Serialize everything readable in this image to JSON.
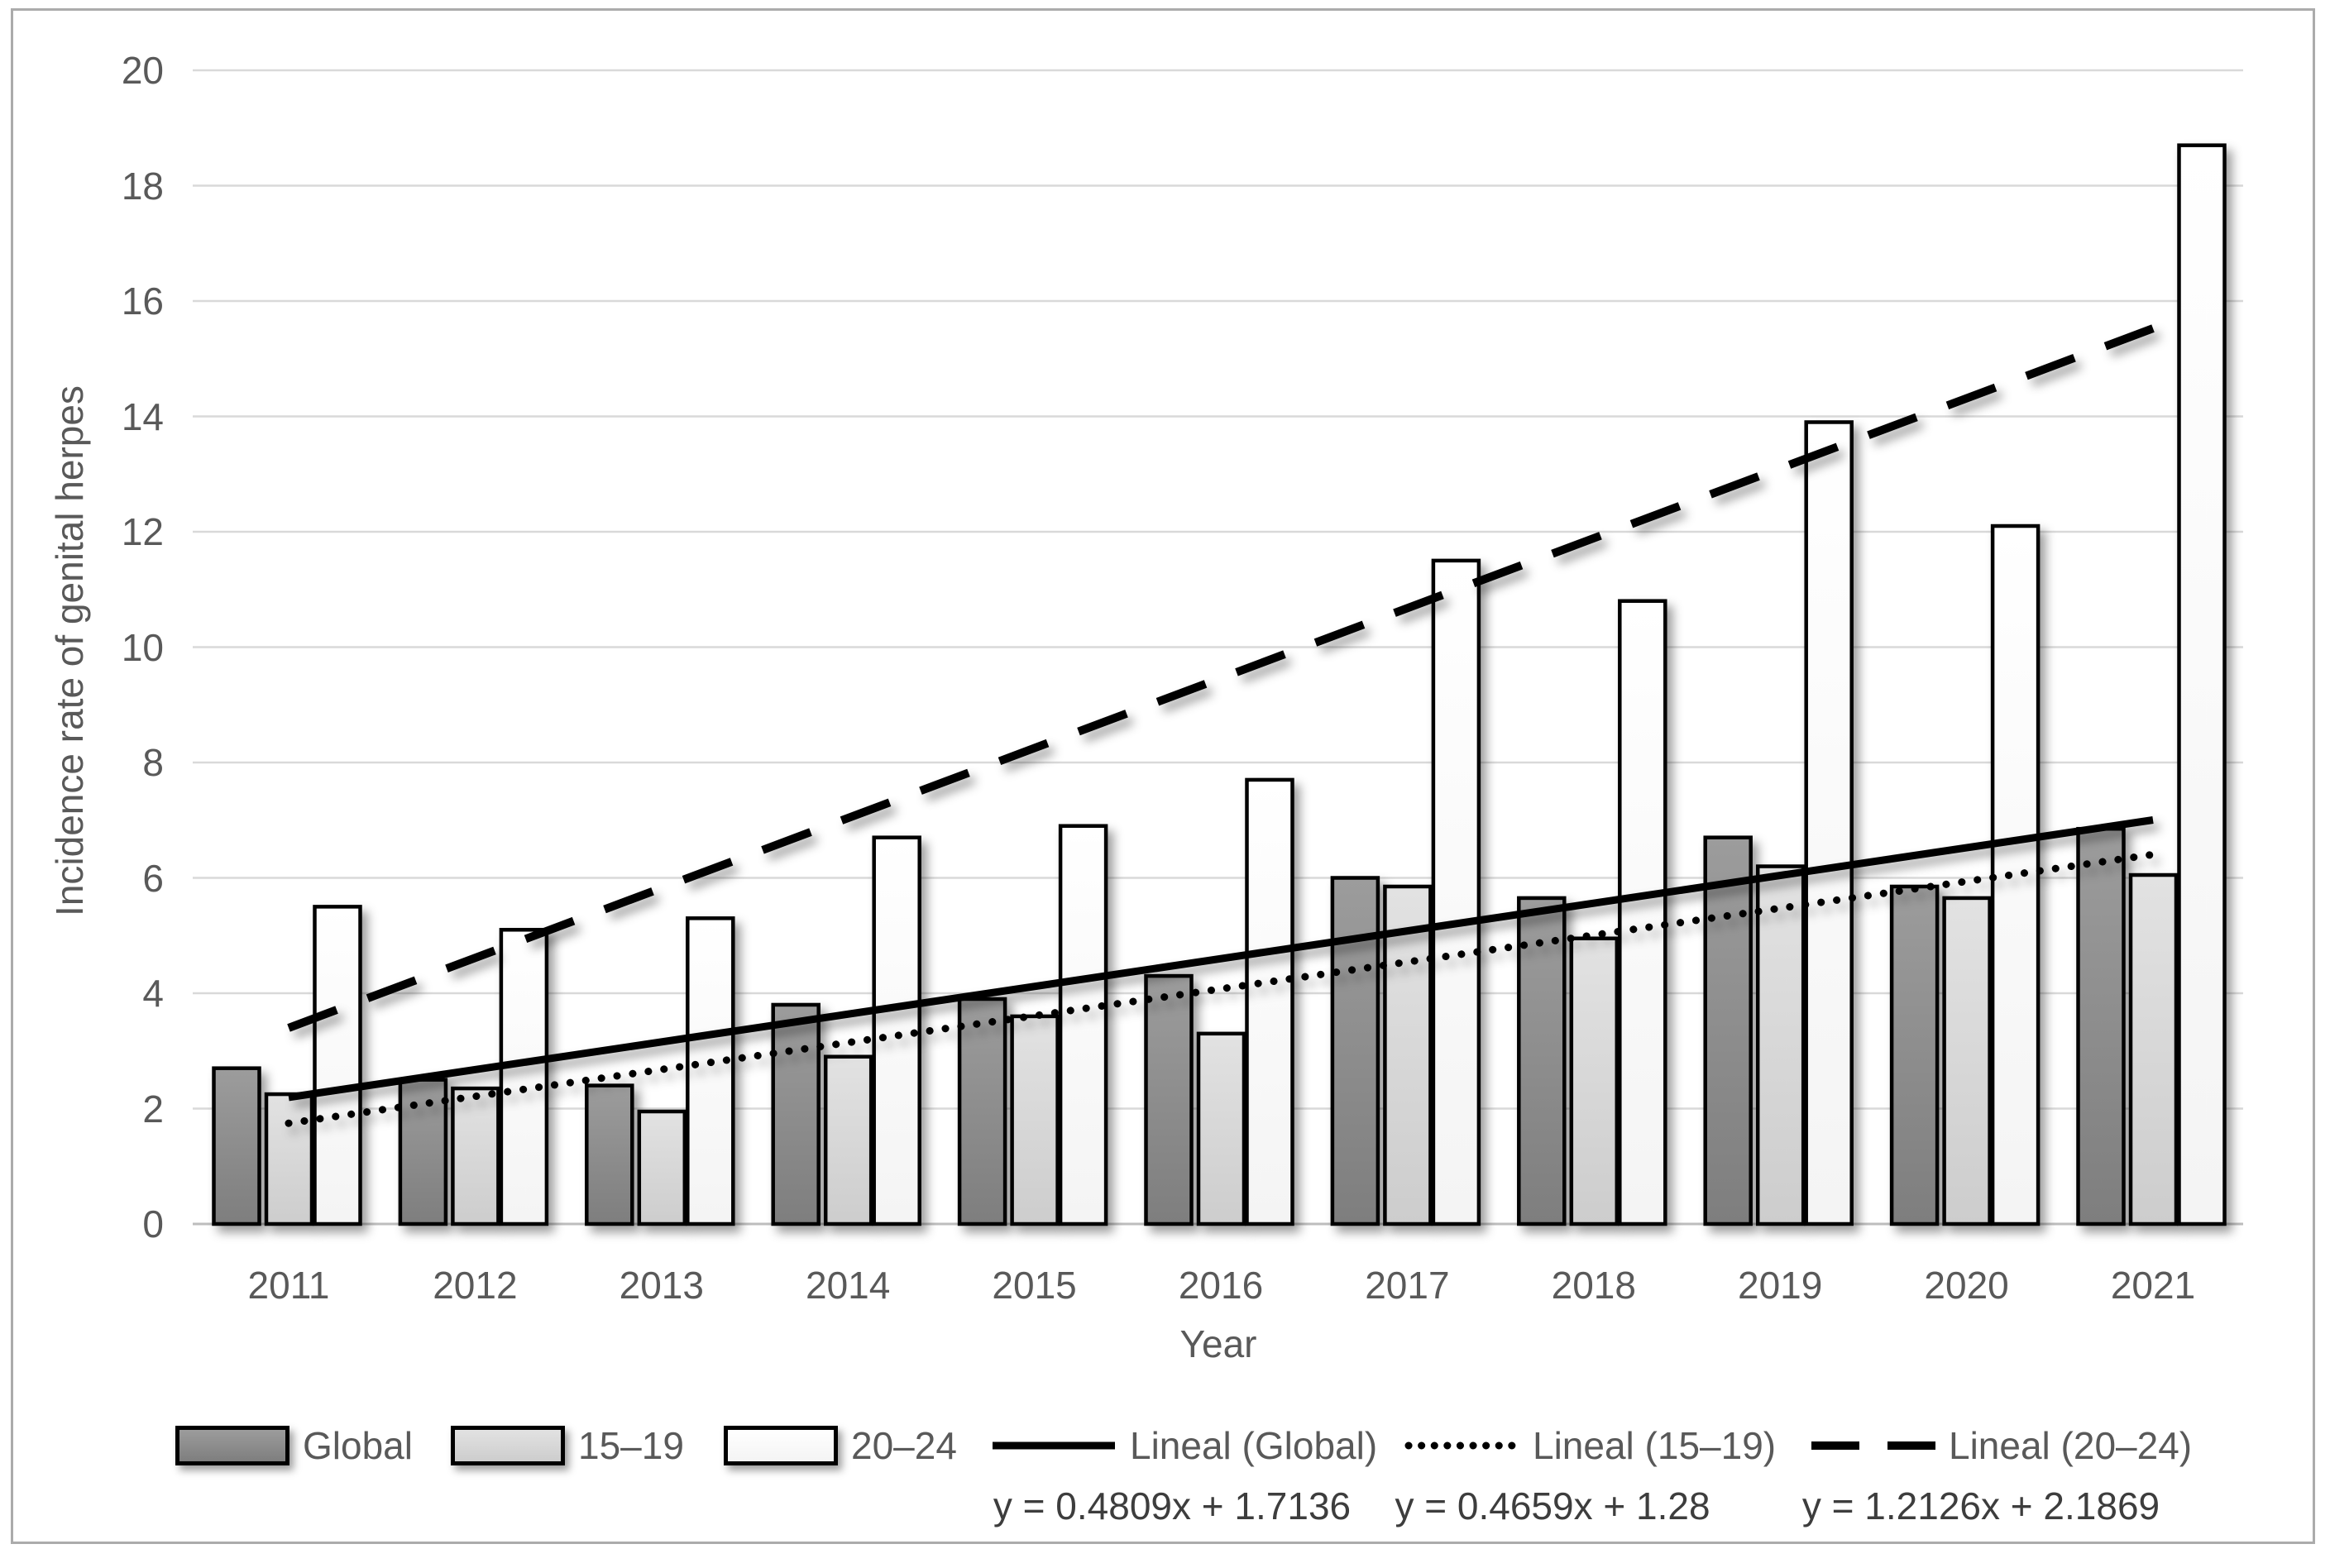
{
  "figure": {
    "y_axis_title": "Incidence rate of genital herpes",
    "x_axis_title": "Year"
  },
  "legend": {
    "items": [
      {
        "label": "Global",
        "swatch": "bar-global-swatch"
      },
      {
        "label": "15–19",
        "swatch": "bar-15-19-swatch"
      },
      {
        "label": "20–24",
        "swatch": "bar-20-24-swatch"
      },
      {
        "label": "Lineal (Global)",
        "swatch": "solid-line-swatch"
      },
      {
        "label": "Lineal (15–19)",
        "swatch": "dotted-line-swatch"
      },
      {
        "label": "Lineal (20–24)",
        "swatch": "dashed-line-swatch"
      }
    ]
  },
  "equations": [
    "y = 0.4809x + 1.7136",
    "y = 0.4659x + 1.28",
    "y = 1.2126x + 2.1869"
  ],
  "chart_data": {
    "type": "bar",
    "title": "",
    "xlabel": "Year",
    "ylabel": "Incidence rate of genital herpes",
    "ylim": [
      0,
      20
    ],
    "ytick_step": 2,
    "y_ticks": [
      0,
      2,
      4,
      6,
      8,
      10,
      12,
      14,
      16,
      18,
      20
    ],
    "grid": true,
    "legend_position": "bottom",
    "categories": [
      "2011",
      "2012",
      "2013",
      "2014",
      "2015",
      "2016",
      "2017",
      "2018",
      "2019",
      "2020",
      "2021"
    ],
    "series": [
      {
        "name": "Global",
        "values": [
          2.7,
          2.5,
          2.4,
          3.8,
          3.9,
          4.3,
          6.0,
          5.65,
          6.7,
          5.85,
          6.85
        ]
      },
      {
        "name": "15–19",
        "values": [
          2.25,
          2.35,
          1.95,
          2.9,
          3.6,
          3.3,
          5.85,
          4.95,
          6.2,
          5.65,
          6.05
        ]
      },
      {
        "name": "20–24",
        "values": [
          5.5,
          5.1,
          5.3,
          6.7,
          6.9,
          7.7,
          11.5,
          10.8,
          13.9,
          12.1,
          18.7
        ]
      }
    ],
    "trendlines": [
      {
        "name": "Lineal (Global)",
        "style": "solid",
        "slope": 0.4809,
        "intercept": 1.7136,
        "equation": "y = 0.4809x + 1.7136"
      },
      {
        "name": "Lineal (15–19)",
        "style": "dotted",
        "slope": 0.4659,
        "intercept": 1.28,
        "equation": "y = 0.4659x + 1.28"
      },
      {
        "name": "Lineal (20–24)",
        "style": "dashed",
        "slope": 1.2126,
        "intercept": 2.1869,
        "equation": "y = 1.2126x + 2.1869"
      }
    ],
    "colors": {
      "bar_global_top": "#9c9c9c",
      "bar_global_bottom": "#7e7e7e",
      "bar_15_19_top": "#e2e2e2",
      "bar_15_19_bottom": "#cdcdcd",
      "bar_20_24": "#ffffff",
      "bar_border": "#000000",
      "trendline": "#000000",
      "gridline": "#d9d9d9",
      "axis_line": "#bdbdbd",
      "text": "#595959"
    }
  }
}
